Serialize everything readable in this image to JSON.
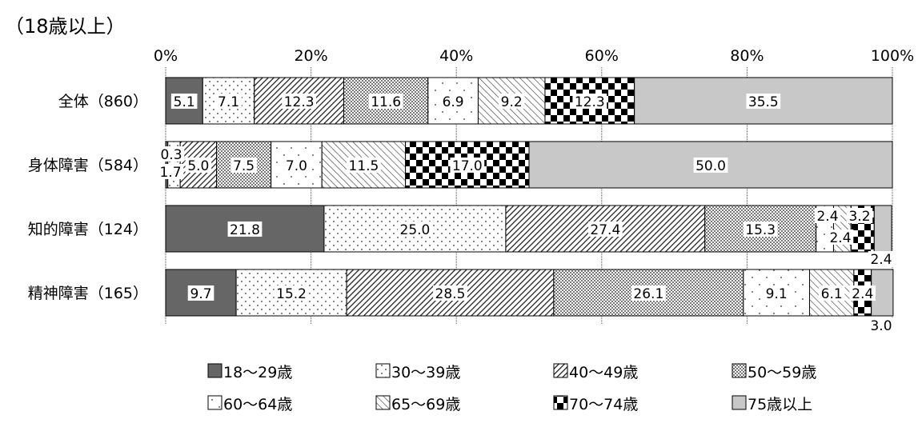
{
  "chart_data": {
    "type": "bar",
    "orientation": "horizontal",
    "stacked": true,
    "title": "（18歳以上）",
    "xlim": [
      0,
      100
    ],
    "x_ticks": [
      "0%",
      "20%",
      "40%",
      "60%",
      "80%",
      "100%"
    ],
    "categories": [
      "全体（860）",
      "身体障害（584）",
      "知的障害（124）",
      "精神障害（165）"
    ],
    "series": [
      {
        "name": "18〜29歳",
        "values": [
          5.1,
          0.3,
          21.8,
          9.7
        ],
        "labels": [
          "5.1",
          "0.3",
          "21.8",
          "9.7"
        ]
      },
      {
        "name": "30〜39歳",
        "values": [
          7.1,
          1.7,
          25.0,
          15.2
        ],
        "labels": [
          "7.1",
          "1.7",
          "25.0",
          "15.2"
        ]
      },
      {
        "name": "40〜49歳",
        "values": [
          12.3,
          5.0,
          27.4,
          28.5
        ],
        "labels": [
          "12.3",
          "5.0",
          "27.4",
          "28.5"
        ]
      },
      {
        "name": "50〜59歳",
        "values": [
          11.6,
          7.5,
          15.3,
          26.1
        ],
        "labels": [
          "11.6",
          "7.5",
          "15.3",
          "26.1"
        ]
      },
      {
        "name": "60〜64歳",
        "values": [
          6.9,
          7.0,
          2.4,
          9.1
        ],
        "labels": [
          "6.9",
          "7.0",
          "2.4",
          "9.1"
        ]
      },
      {
        "name": "65〜69歳",
        "values": [
          9.2,
          11.5,
          2.4,
          6.1
        ],
        "labels": [
          "9.2",
          "11.5",
          "2.4",
          "6.1"
        ]
      },
      {
        "name": "70〜74歳",
        "values": [
          12.3,
          17.0,
          3.2,
          2.4
        ],
        "labels": [
          "12.3",
          "17.0",
          "3.2",
          "2.4"
        ]
      },
      {
        "name": "75歳以上",
        "values": [
          35.5,
          50.0,
          2.4,
          3.0
        ],
        "labels": [
          "35.5",
          "50.0",
          "2.4",
          "3.0"
        ]
      }
    ],
    "legend_position": "bottom",
    "grid": false
  }
}
